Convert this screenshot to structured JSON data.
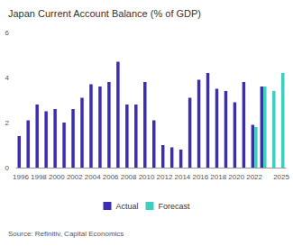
{
  "chart_data": {
    "type": "bar",
    "title": "Japan Current Account Balance (% of GDP)",
    "annotation": "Source: Refinitiv, Capital Economics",
    "categories": [
      "1996",
      null,
      "1998",
      null,
      "2000",
      null,
      "2002",
      null,
      "2004",
      null,
      "2006",
      null,
      "2008",
      null,
      "2010",
      null,
      "2012",
      null,
      "2014",
      null,
      "2016",
      null,
      "2018",
      null,
      "2020",
      null,
      "2022",
      null,
      null,
      "2025"
    ],
    "series": [
      {
        "name": "Actual",
        "color": "#3b2db5",
        "values": [
          1.4,
          2.1,
          2.8,
          2.5,
          2.6,
          2.0,
          2.6,
          3.1,
          3.7,
          3.6,
          3.8,
          4.7,
          2.8,
          2.8,
          3.8,
          2.1,
          1.0,
          0.9,
          0.8,
          3.1,
          3.9,
          4.2,
          3.5,
          3.4,
          2.9,
          3.8,
          1.9,
          3.6,
          null,
          null
        ]
      },
      {
        "name": "Forecast",
        "color": "#3ecfbf",
        "values": [
          null,
          null,
          null,
          null,
          null,
          null,
          null,
          null,
          null,
          null,
          null,
          null,
          null,
          null,
          null,
          null,
          null,
          null,
          null,
          null,
          null,
          null,
          null,
          null,
          null,
          null,
          1.8,
          3.6,
          3.4,
          4.2
        ]
      }
    ],
    "ylim": [
      0,
      6
    ],
    "yticks": [
      0,
      2,
      4,
      6
    ],
    "grid": false,
    "legend": "bottom"
  }
}
